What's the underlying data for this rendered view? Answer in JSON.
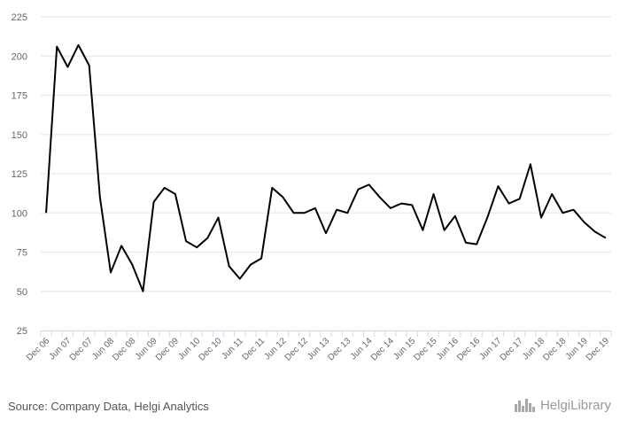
{
  "chart_data": {
    "type": "line",
    "ylim": [
      25,
      225
    ],
    "yticks": [
      25,
      50,
      75,
      100,
      125,
      150,
      175,
      200,
      225
    ],
    "grid": true,
    "x_tick_labels": [
      "Dec 06",
      "Jun 07",
      "Dec 07",
      "Jun 08",
      "Dec 08",
      "Jun 09",
      "Dec 09",
      "Jun 10",
      "Dec 10",
      "Jun 11",
      "Dec 11",
      "Jun 12",
      "Dec 12",
      "Jun 13",
      "Dec 13",
      "Jun 14",
      "Dec 14",
      "Jun 15",
      "Dec 15",
      "Jun 16",
      "Dec 16",
      "Jun 17",
      "Dec 17",
      "Jun 18",
      "Dec 18",
      "Jun 19",
      "Dec 19"
    ],
    "series": [
      {
        "color": "#000000",
        "values": [
          100,
          206,
          193,
          207,
          194,
          110,
          62,
          79,
          67,
          50,
          107,
          116,
          112,
          82,
          78,
          84,
          97,
          66,
          58,
          67,
          71,
          116,
          110,
          100,
          100,
          103,
          87,
          102,
          100,
          115,
          118,
          110,
          103,
          106,
          105,
          89,
          112,
          89,
          98,
          81,
          80,
          97,
          117,
          106,
          109,
          131,
          97,
          112,
          100,
          102,
          94,
          88,
          84
        ]
      }
    ]
  },
  "footer": {
    "source": "Source: Company Data, Helgi Analytics",
    "logo_text": "HelgiLibrary"
  }
}
